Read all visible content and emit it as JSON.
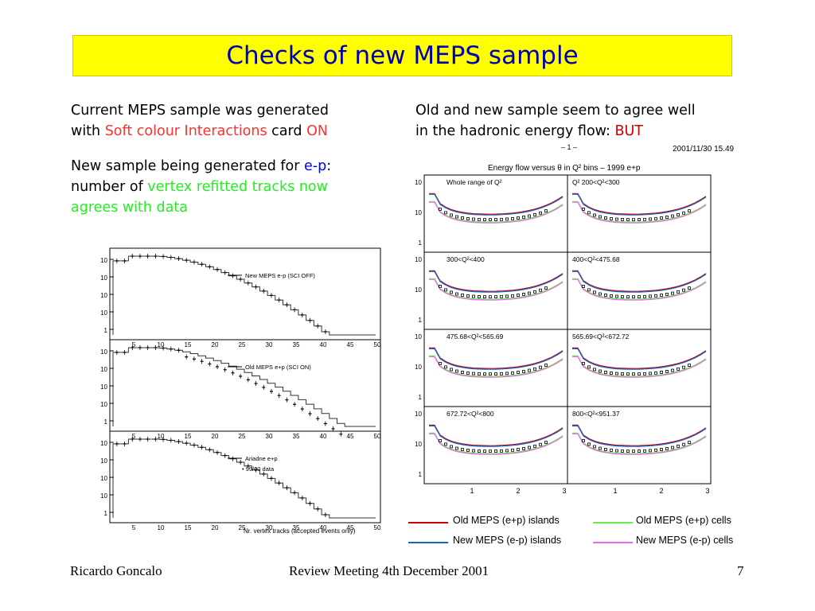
{
  "title": "Checks of new MEPS sample",
  "left_text": {
    "p1_line1": "Current MEPS sample was generated",
    "p1_with": "with ",
    "p1_highlight": "Soft colour Interactions",
    "p1_card": " card ",
    "p1_on": "ON",
    "p2_line1_a": "New sample being generated for ",
    "p2_ep": "e-p",
    "p2_colon": ":",
    "p2_line2_a": "number of ",
    "p2_line2_b": "vertex refitted tracks now",
    "p2_line3": "agrees with data"
  },
  "right_text": {
    "line1": "Old and new sample seem to agree well",
    "line2_a": "in the hadronic energy flow: ",
    "line2_but": "BUT"
  },
  "left_figure": {
    "panels": [
      {
        "legend_a": "New MEPS e-p (SCI OFF)"
      },
      {
        "legend_a": "Old MEPS e+p (SCI ON)"
      },
      {
        "legend_a": "Ariadne e+p",
        "legend_b": "• 99/00 data"
      }
    ],
    "x_ticks": [
      "5",
      "10",
      "15",
      "20",
      "25",
      "30",
      "35",
      "40",
      "45",
      "50"
    ],
    "y_ticks": [
      "10",
      "10",
      "10",
      "10",
      "1"
    ],
    "xlabel": "Nr. vertex tracks (accepted events only)"
  },
  "right_figure": {
    "header_left": "– 1 –",
    "header_right": "2001/11/30   15.49",
    "title": "Energy flow versus θ in Q² bins – 1999 e+p",
    "panels": [
      "Whole range of Q²",
      "Q² 200<Q²<300",
      "300<Q²<400",
      "400<Q²<475.68",
      "475.68<Q²<565.69",
      "565.69<Q²<672.72",
      "672.72<Q²<800",
      "800<Q²<951.37"
    ],
    "y_ticks": [
      "10",
      "10",
      "1"
    ],
    "x_ticks": [
      "1",
      "2",
      "3"
    ]
  },
  "legend": [
    {
      "label": "Old MEPS (e+p) islands",
      "color": "#cc0000"
    },
    {
      "label": "Old MEPS (e+p) cells",
      "color": "#66ee44"
    },
    {
      "label": "New MEPS (e-p) islands",
      "color": "#1166cc"
    },
    {
      "label": "New MEPS (e-p) cells",
      "color": "#ee66ee"
    }
  ],
  "footer": {
    "author": "Ricardo Goncalo",
    "event": "Review Meeting 4th December 2001",
    "page": "7"
  }
}
